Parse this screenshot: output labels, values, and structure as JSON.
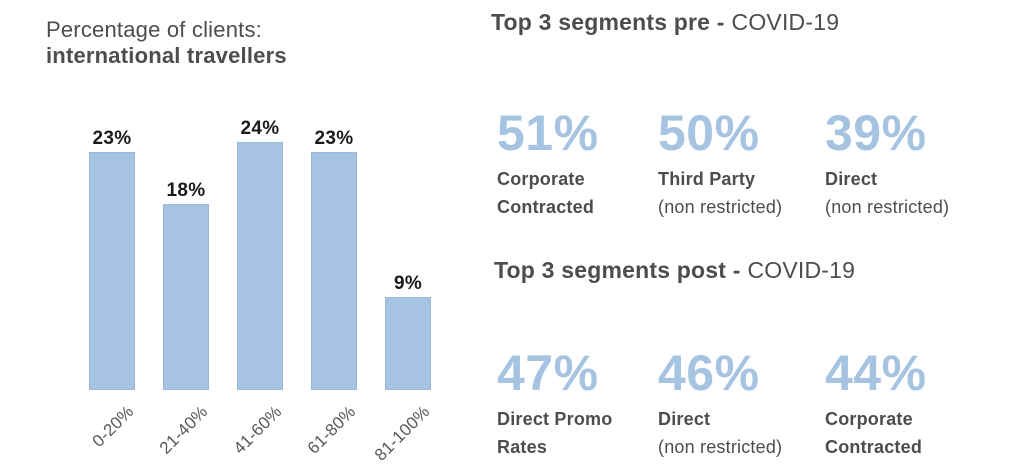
{
  "colors": {
    "accent_blue": "#a6c4e2",
    "dark_text": "#4d4d4d",
    "value_label_black": "#1a1a1a",
    "axis_gray": "#595959"
  },
  "chart_header": {
    "line1": "Percentage of clients:",
    "line2": "international travellers"
  },
  "chart_data": {
    "type": "bar",
    "title": "Percentage of clients: international travellers",
    "categories": [
      "0-20%",
      "21-40%",
      "41-60%",
      "61-80%",
      "81-100%"
    ],
    "values": [
      23,
      18,
      24,
      23,
      9
    ],
    "value_labels": [
      "23%",
      "18%",
      "24%",
      "23%",
      "9%"
    ],
    "xlabel": "",
    "ylabel": "",
    "ylim": [
      0,
      26
    ],
    "grid": false,
    "legend": false,
    "bar_color": "#a6c4e2"
  },
  "segments_pre": {
    "title_bold": "Top 3 segments pre -",
    "title_regular": "COVID-19",
    "items": [
      {
        "value": "51%",
        "line1": "Corporate",
        "line2": "Contracted",
        "line2_bold": true
      },
      {
        "value": "50%",
        "line1": "Third Party",
        "line2": "(non restricted)",
        "line2_bold": false
      },
      {
        "value": "39%",
        "line1": "Direct",
        "line2": "(non restricted)",
        "line2_bold": false
      }
    ]
  },
  "segments_post": {
    "title_bold": "Top 3 segments post -",
    "title_regular": "COVID-19",
    "items": [
      {
        "value": "47%",
        "line1": "Direct Promo",
        "line2": "Rates",
        "line2_bold": true
      },
      {
        "value": "46%",
        "line1": "Direct",
        "line2": "(non restricted)",
        "line2_bold": false
      },
      {
        "value": "44%",
        "line1": "Corporate",
        "line2": "Contracted",
        "line2_bold": true
      }
    ]
  }
}
